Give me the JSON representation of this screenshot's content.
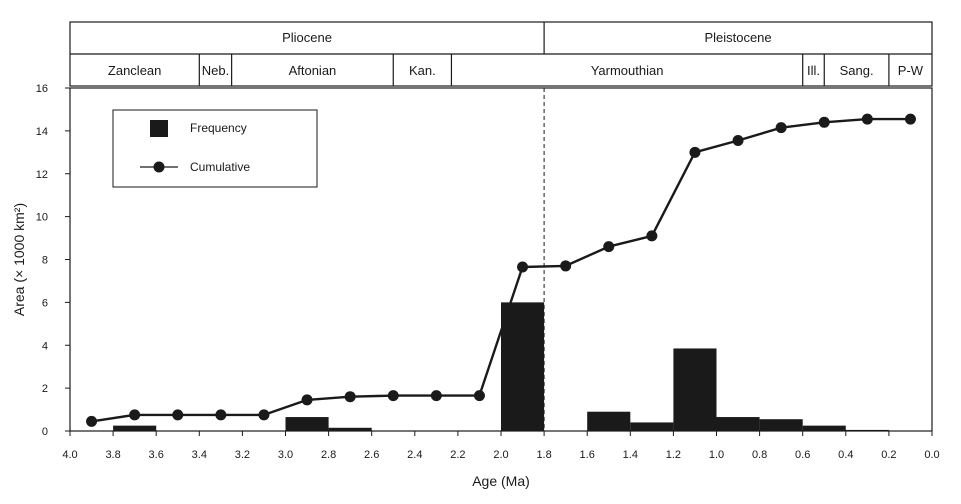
{
  "chart_data": {
    "type": "bar",
    "xlabel": "Age (Ma)",
    "ylabel": "Area (× 1000 km²)",
    "xlim": [
      4.0,
      0.0
    ],
    "ylim": [
      0,
      16
    ],
    "x_reversed": true,
    "grid": false,
    "x_ticks": [
      "4.0",
      "3.8",
      "3.6",
      "3.4",
      "3.2",
      "3.0",
      "2.8",
      "2.6",
      "2.4",
      "2.2",
      "2.0",
      "1.8",
      "1.6",
      "1.4",
      "1.2",
      "1.0",
      "0.8",
      "0.6",
      "0.4",
      "0.2",
      "0.0"
    ],
    "y_ticks": [
      "0",
      "2",
      "4",
      "6",
      "8",
      "10",
      "12",
      "14",
      "16"
    ],
    "legend": {
      "position": "top-left",
      "entries": [
        {
          "label": "Frequency",
          "marker": "square"
        },
        {
          "label": "Cumulative",
          "marker": "line-circle"
        }
      ]
    },
    "frequency": [
      {
        "from": 3.8,
        "to": 3.6,
        "value": 0.25
      },
      {
        "from": 3.0,
        "to": 2.8,
        "value": 0.65
      },
      {
        "from": 2.8,
        "to": 2.6,
        "value": 0.15
      },
      {
        "from": 2.0,
        "to": 1.8,
        "value": 6.0
      },
      {
        "from": 1.6,
        "to": 1.4,
        "value": 0.9
      },
      {
        "from": 1.4,
        "to": 1.2,
        "value": 0.4
      },
      {
        "from": 1.2,
        "to": 1.0,
        "value": 3.85
      },
      {
        "from": 1.0,
        "to": 0.8,
        "value": 0.65
      },
      {
        "from": 0.8,
        "to": 0.6,
        "value": 0.55
      },
      {
        "from": 0.6,
        "to": 0.4,
        "value": 0.25
      },
      {
        "from": 0.4,
        "to": 0.2,
        "value": 0.05
      }
    ],
    "cumulative": {
      "x": [
        3.9,
        3.7,
        3.5,
        3.3,
        3.1,
        2.9,
        2.7,
        2.5,
        2.3,
        2.1,
        1.9,
        1.7,
        1.5,
        1.3,
        1.1,
        0.9,
        0.7,
        0.5,
        0.3,
        0.1
      ],
      "y": [
        0.45,
        0.75,
        0.75,
        0.75,
        0.75,
        1.45,
        1.6,
        1.65,
        1.65,
        1.65,
        7.65,
        7.7,
        8.6,
        9.1,
        13.0,
        13.55,
        14.15,
        14.4,
        14.55,
        14.55
      ]
    },
    "boundary_line": {
      "x": 1.8,
      "style": "dashed"
    },
    "epochs": [
      {
        "label": "Pliocene",
        "from": 4.0,
        "to": 1.8
      },
      {
        "label": "Pleistocene",
        "from": 1.8,
        "to": 0.0
      }
    ],
    "stages": [
      {
        "label": "Zanclean",
        "from": 4.0,
        "to": 3.4
      },
      {
        "label": "Neb.",
        "from": 3.4,
        "to": 3.25
      },
      {
        "label": "Aftonian",
        "from": 3.25,
        "to": 2.5
      },
      {
        "label": "Kan.",
        "from": 2.5,
        "to": 2.23
      },
      {
        "label": "Yarmouthian",
        "from": 2.23,
        "to": 0.6
      },
      {
        "label": "Ill.",
        "from": 0.6,
        "to": 0.5
      },
      {
        "label": "Sang.",
        "from": 0.5,
        "to": 0.2
      },
      {
        "label": "P-W",
        "from": 0.2,
        "to": 0.0
      }
    ]
  }
}
